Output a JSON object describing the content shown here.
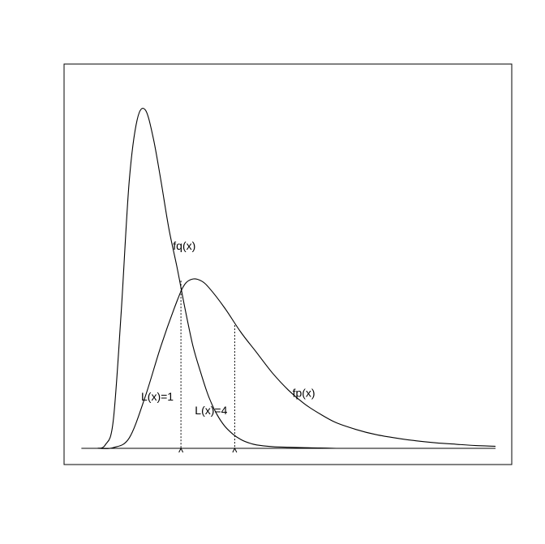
{
  "chart_data": {
    "type": "line",
    "title": "",
    "xlabel": "",
    "ylabel": "",
    "xlim": [
      0,
      10
    ],
    "ylim": [
      0,
      1
    ],
    "axes_shown": false,
    "grid": false,
    "box": true,
    "series": [
      {
        "name": "fq(x)",
        "label_at": [
          1.9,
          0.58
        ],
        "x": [
          0,
          0.2,
          0.4,
          0.6,
          0.8,
          1.0,
          1.2,
          1.4,
          1.6,
          1.8,
          2.0,
          2.2,
          2.4,
          2.6,
          2.8,
          3.0,
          3.2,
          3.4,
          3.6,
          3.8,
          4.0,
          4.4,
          4.8,
          5.2,
          5.6,
          6.0
        ],
        "y": [
          0,
          0.01,
          0.08,
          0.4,
          0.78,
          0.96,
          0.99,
          0.91,
          0.78,
          0.64,
          0.53,
          0.41,
          0.3,
          0.22,
          0.15,
          0.1,
          0.065,
          0.042,
          0.026,
          0.016,
          0.01,
          0.005,
          0.003,
          0.002,
          0.001,
          0
        ]
      },
      {
        "name": "fp(x)",
        "label_at": [
          4.9,
          0.15
        ],
        "x": [
          0,
          0.4,
          0.8,
          1.2,
          1.6,
          2.0,
          2.2,
          2.4,
          2.6,
          2.8,
          3.2,
          3.6,
          4.0,
          4.4,
          4.8,
          5.2,
          5.6,
          6.0,
          6.5,
          7.0,
          7.5,
          8.0,
          8.5,
          9.0,
          9.5,
          10.0
        ],
        "y": [
          0,
          0.002,
          0.03,
          0.15,
          0.3,
          0.43,
          0.48,
          0.495,
          0.49,
          0.47,
          0.41,
          0.34,
          0.28,
          0.22,
          0.17,
          0.13,
          0.1,
          0.075,
          0.055,
          0.04,
          0.03,
          0.022,
          0.016,
          0.012,
          0.008,
          0.006
        ]
      }
    ],
    "baseline": {
      "x_from": -0.4,
      "x_to": 10.0,
      "y": 0
    },
    "markers": [
      {
        "label": "L(x)=1",
        "x": 2.1,
        "y": 0.49,
        "label_at": [
          1.1,
          0.14
        ]
      },
      {
        "label": "L(x)=4",
        "x": 3.45,
        "y": 0.36,
        "label_at": [
          2.45,
          0.1
        ]
      }
    ]
  }
}
